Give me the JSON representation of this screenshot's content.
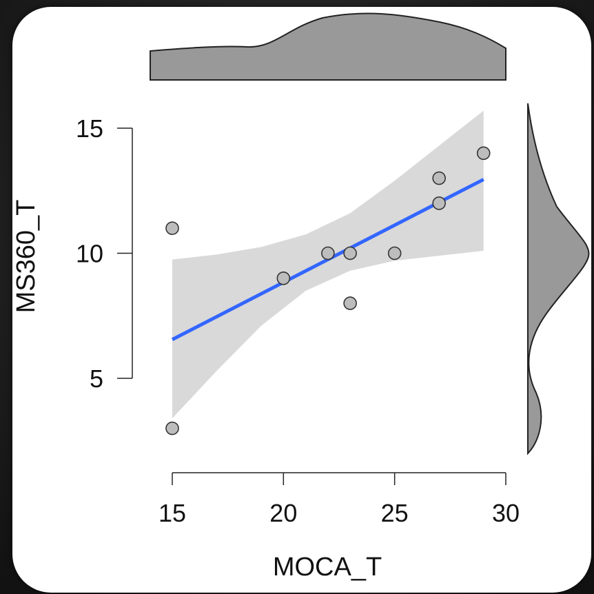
{
  "chart_data": {
    "type": "scatter",
    "title": "",
    "xlabel": "MOCA_T",
    "ylabel": "MS360_T",
    "xlim": [
      15,
      30
    ],
    "ylim": [
      3,
      15
    ],
    "x_ticks": [
      15,
      20,
      25,
      30
    ],
    "y_ticks": [
      5,
      10,
      15
    ],
    "points": [
      {
        "x": 15,
        "y": 11
      },
      {
        "x": 15,
        "y": 3
      },
      {
        "x": 20,
        "y": 9
      },
      {
        "x": 22,
        "y": 10
      },
      {
        "x": 23,
        "y": 10
      },
      {
        "x": 23,
        "y": 8
      },
      {
        "x": 25,
        "y": 10
      },
      {
        "x": 27,
        "y": 13
      },
      {
        "x": 27,
        "y": 12
      },
      {
        "x": 29,
        "y": 14
      }
    ],
    "fit_line": {
      "x": [
        15,
        29
      ],
      "y": [
        6.55,
        12.95
      ]
    },
    "confidence_band": {
      "x": [
        15,
        17,
        19,
        21,
        23,
        25,
        27,
        29
      ],
      "lower": [
        3.4,
        5.3,
        7.1,
        8.5,
        9.3,
        9.7,
        9.9,
        10.1
      ],
      "upper": [
        9.75,
        9.95,
        10.25,
        10.75,
        11.6,
        12.9,
        14.3,
        15.7
      ]
    },
    "grid": false,
    "marginal_density": {
      "top": true,
      "right": true
    },
    "colors": {
      "fit_line": "#3366ff",
      "confidence_band": "#d9d9d9",
      "point_fill": "#bdbdbd",
      "point_stroke": "#333333",
      "density_fill": "#999999"
    }
  }
}
